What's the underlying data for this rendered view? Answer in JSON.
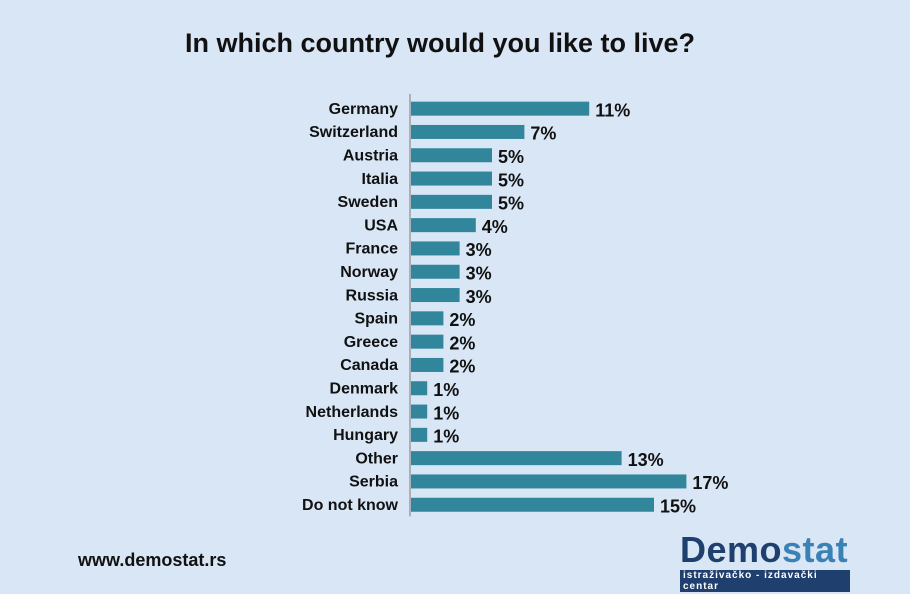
{
  "title": "In which country would you like to live?",
  "footer": {
    "website": "www.demostat.rs"
  },
  "logo": {
    "demo": "Demo",
    "stat": "stat",
    "subtitle": "istraživačko - izdavački centar"
  },
  "colors": {
    "bar": "#31869b",
    "background": "#d9e6f5"
  },
  "chart_data": {
    "type": "bar",
    "orientation": "horizontal",
    "title": "In which country would you like to live?",
    "categories": [
      "Germany",
      "Switzerland",
      "Austria",
      "Italia",
      "Sweden",
      "USA",
      "France",
      "Norway",
      "Russia",
      "Spain",
      "Greece",
      "Canada",
      "Denmark",
      "Netherlands",
      "Hungary",
      "Other",
      "Serbia",
      "Do not know"
    ],
    "values": [
      11,
      7,
      5,
      5,
      5,
      4,
      3,
      3,
      3,
      2,
      2,
      2,
      1,
      1,
      1,
      13,
      17,
      15
    ],
    "value_labels": [
      "11%",
      "7%",
      "5%",
      "5%",
      "5%",
      "4%",
      "3%",
      "3%",
      "3%",
      "2%",
      "2%",
      "2%",
      "1%",
      "1%",
      "1%",
      "13%",
      "17%",
      "15%"
    ],
    "unit": "%",
    "xlim": [
      0,
      17
    ],
    "grid": false,
    "legend": "none"
  }
}
